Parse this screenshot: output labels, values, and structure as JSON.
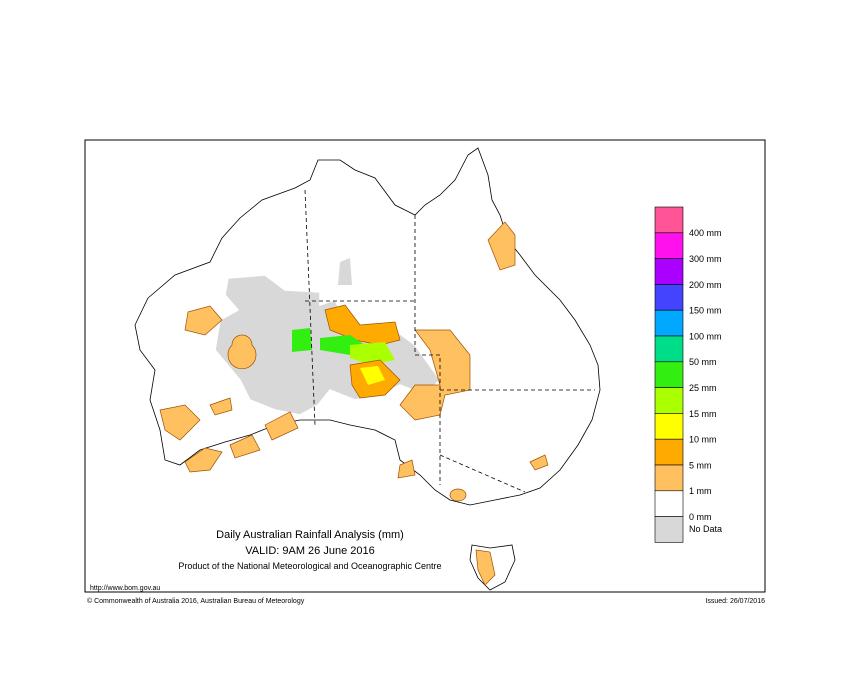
{
  "map": {
    "title": "Daily Australian Rainfall Analysis (mm)",
    "valid": "VALID: 9AM 26 June 2016",
    "product": "Product of the National Meteorological and Oceanographic Centre",
    "url": "http://www.bom.gov.au",
    "copyright": "© Commonwealth of Australia 2016, Australian Bureau of Meteorology",
    "issued": "Issued: 26/07/2016",
    "legend": {
      "colors": [
        "#ff5596",
        "#ff11ee",
        "#aa00ff",
        "#4444ff",
        "#00a8ff",
        "#00dd88",
        "#33ee11",
        "#aaff00",
        "#ffff00",
        "#ffaa00",
        "#ffc060",
        "#ffffff",
        "#d8d8d8"
      ],
      "labels": [
        "400 mm",
        "300 mm",
        "200 mm",
        "150 mm",
        "100 mm",
        "50 mm",
        "25 mm",
        "15 mm",
        "10 mm",
        "5 mm",
        "1 mm",
        "0 mm"
      ],
      "no_data": "No Data"
    }
  }
}
